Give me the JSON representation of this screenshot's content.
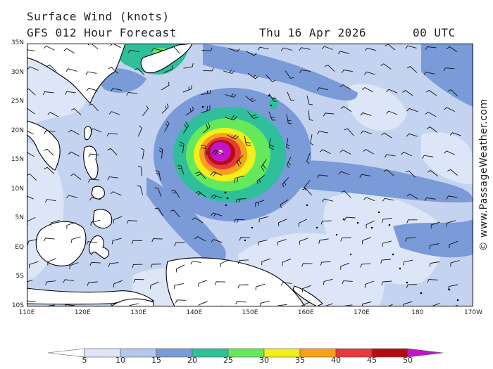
{
  "header": {
    "title": "Surface Wind (knots)",
    "model": "GFS 012 Hour Forecast",
    "date": "Thu 16 Apr 2026",
    "time": "00 UTC"
  },
  "credit": "© www.PassageWeather.com",
  "map": {
    "lat_labels": [
      "35N",
      "30N",
      "25N",
      "20N",
      "15N",
      "10N",
      "5N",
      "EQ",
      "5S",
      "10S"
    ],
    "lon_labels": [
      "110E",
      "120E",
      "130E",
      "140E",
      "150E",
      "160E",
      "170E",
      "180",
      "170W"
    ],
    "lat_range": [
      -10,
      35
    ],
    "lon_range": [
      110,
      190
    ],
    "storm_center": {
      "lon": 145.5,
      "lat": 17.5
    }
  },
  "colorbar": {
    "labels": [
      "5",
      "10",
      "15",
      "20",
      "25",
      "30",
      "35",
      "40",
      "45",
      "50"
    ],
    "colors": [
      "#ffffff",
      "#dde6f7",
      "#b4c8ec",
      "#7a9ad8",
      "#2fbf9a",
      "#66e85c",
      "#f4ef1a",
      "#f7a21b",
      "#e8393b",
      "#b40d10",
      "#c214c8"
    ]
  }
}
